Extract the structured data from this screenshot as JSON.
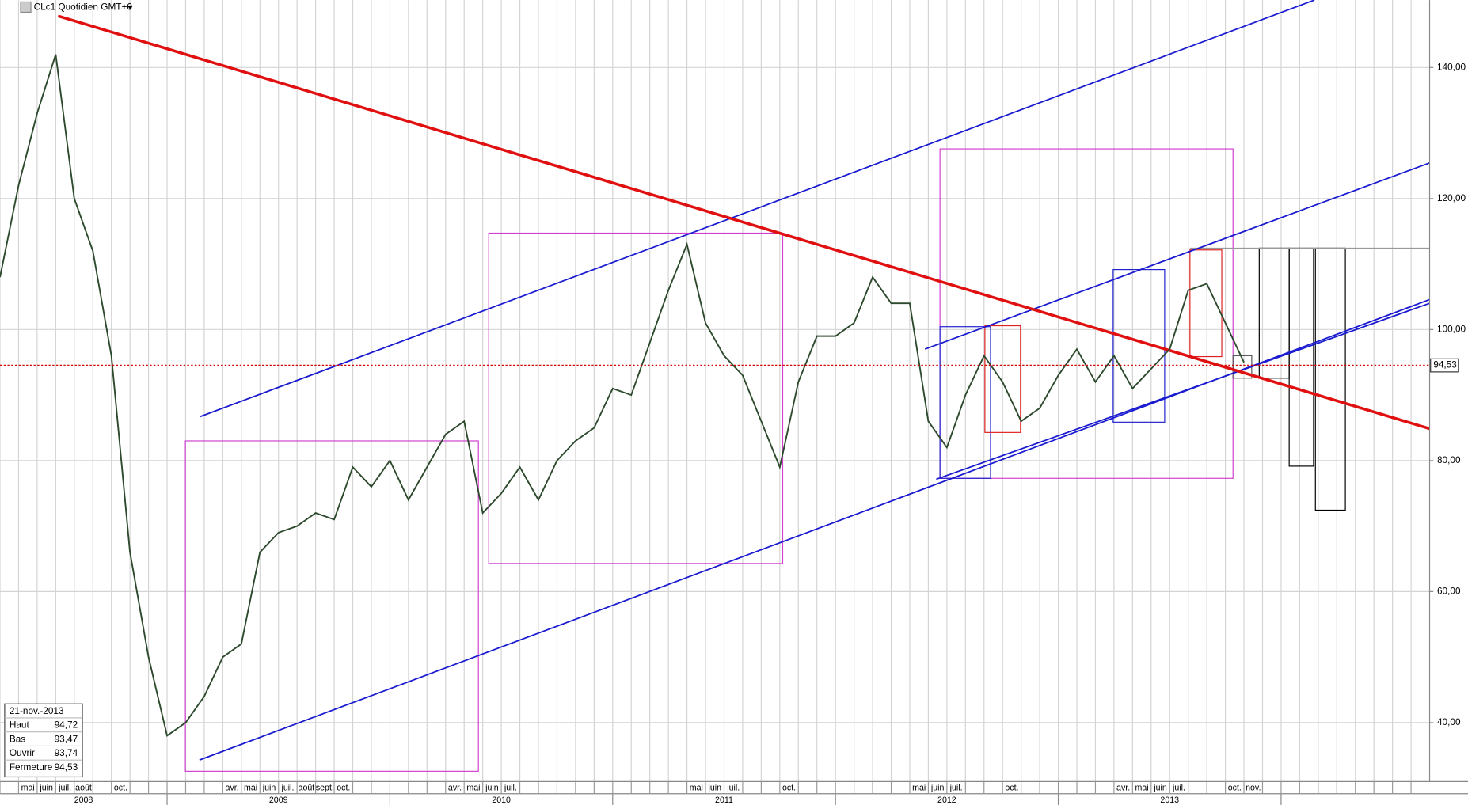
{
  "chart_data": {
    "type": "line",
    "title": "CLc1 Quotidien GMT+0",
    "xlim": [
      "2008-04",
      "2014-09"
    ],
    "ylim": [
      31,
      150.3
    ],
    "yticks": [
      {
        "value": 40,
        "label": "40,00"
      },
      {
        "value": 60,
        "label": "60,00"
      },
      {
        "value": 80,
        "label": "80,00"
      },
      {
        "value": 100,
        "label": "100,00"
      },
      {
        "value": 120,
        "label": "120,00"
      },
      {
        "value": 140,
        "label": "140,00"
      }
    ],
    "xticks": [
      {
        "value": "2008-04",
        "label": null
      },
      {
        "value": "2008-05",
        "label": "mai"
      },
      {
        "value": "2008-06",
        "label": "juin"
      },
      {
        "value": "2008-07",
        "label": "juil."
      },
      {
        "value": "2008-08",
        "label": "août"
      },
      {
        "value": "2008-09",
        "label": null
      },
      {
        "value": "2008-10",
        "label": "oct."
      },
      {
        "value": "2008-11",
        "label": null
      },
      {
        "value": "2008-12",
        "label": null
      },
      {
        "value": "2009-01",
        "label": null
      },
      {
        "value": "2009-02",
        "label": null
      },
      {
        "value": "2009-03",
        "label": null
      },
      {
        "value": "2009-04",
        "label": "avr."
      },
      {
        "value": "2009-05",
        "label": "mai"
      },
      {
        "value": "2009-06",
        "label": "juin"
      },
      {
        "value": "2009-07",
        "label": "juil."
      },
      {
        "value": "2009-08",
        "label": "août"
      },
      {
        "value": "2009-09",
        "label": "sept."
      },
      {
        "value": "2009-10",
        "label": "oct."
      },
      {
        "value": "2009-11",
        "label": null
      },
      {
        "value": "2009-12",
        "label": null
      },
      {
        "value": "2010-01",
        "label": null
      },
      {
        "value": "2010-02",
        "label": null
      },
      {
        "value": "2010-03",
        "label": null
      },
      {
        "value": "2010-04",
        "label": "avr."
      },
      {
        "value": "2010-05",
        "label": "mai"
      },
      {
        "value": "2010-06",
        "label": "juin"
      },
      {
        "value": "2010-07",
        "label": "juil."
      },
      {
        "value": "2010-08",
        "label": null
      },
      {
        "value": "2010-09",
        "label": null
      },
      {
        "value": "2010-10",
        "label": null
      },
      {
        "value": "2010-11",
        "label": null
      },
      {
        "value": "2010-12",
        "label": null
      },
      {
        "value": "2011-01",
        "label": null
      },
      {
        "value": "2011-02",
        "label": null
      },
      {
        "value": "2011-03",
        "label": null
      },
      {
        "value": "2011-04",
        "label": null
      },
      {
        "value": "2011-05",
        "label": "mai"
      },
      {
        "value": "2011-06",
        "label": "juin"
      },
      {
        "value": "2011-07",
        "label": "juil."
      },
      {
        "value": "2011-08",
        "label": null
      },
      {
        "value": "2011-09",
        "label": null
      },
      {
        "value": "2011-10",
        "label": "oct."
      },
      {
        "value": "2011-11",
        "label": null
      },
      {
        "value": "2011-12",
        "label": null
      },
      {
        "value": "2012-01",
        "label": null
      },
      {
        "value": "2012-02",
        "label": null
      },
      {
        "value": "2012-03",
        "label": null
      },
      {
        "value": "2012-04",
        "label": null
      },
      {
        "value": "2012-05",
        "label": "mai"
      },
      {
        "value": "2012-06",
        "label": "juin"
      },
      {
        "value": "2012-07",
        "label": "juil."
      },
      {
        "value": "2012-08",
        "label": null
      },
      {
        "value": "2012-09",
        "label": null
      },
      {
        "value": "2012-10",
        "label": "oct."
      },
      {
        "value": "2012-11",
        "label": null
      },
      {
        "value": "2012-12",
        "label": null
      },
      {
        "value": "2013-01",
        "label": null
      },
      {
        "value": "2013-02",
        "label": null
      },
      {
        "value": "2013-03",
        "label": null
      },
      {
        "value": "2013-04",
        "label": "avr."
      },
      {
        "value": "2013-05",
        "label": "mai"
      },
      {
        "value": "2013-06",
        "label": "juin"
      },
      {
        "value": "2013-07",
        "label": "juil."
      },
      {
        "value": "2013-08",
        "label": null
      },
      {
        "value": "2013-09",
        "label": null
      },
      {
        "value": "2013-10",
        "label": "oct."
      },
      {
        "value": "2013-11",
        "label": "nov."
      },
      {
        "value": "2013-12",
        "label": null
      },
      {
        "value": "2014-01",
        "label": null
      },
      {
        "value": "2014-02",
        "label": null
      },
      {
        "value": "2014-03",
        "label": null
      },
      {
        "value": "2014-04",
        "label": null
      },
      {
        "value": "2014-05",
        "label": null
      },
      {
        "value": "2014-06",
        "label": null
      },
      {
        "value": "2014-07",
        "label": null
      },
      {
        "value": "2014-08",
        "label": null
      }
    ],
    "years": [
      "2008",
      "2009",
      "2010",
      "2011",
      "2012",
      "2013"
    ],
    "x": [
      "2008-04",
      "2008-05",
      "2008-06",
      "2008-07",
      "2008-08",
      "2008-09",
      "2008-10",
      "2008-11",
      "2008-12",
      "2009-01",
      "2009-02",
      "2009-03",
      "2009-04",
      "2009-05",
      "2009-06",
      "2009-07",
      "2009-08",
      "2009-09",
      "2009-10",
      "2009-11",
      "2009-12",
      "2010-01",
      "2010-02",
      "2010-03",
      "2010-04",
      "2010-05",
      "2010-06",
      "2010-07",
      "2010-08",
      "2010-09",
      "2010-10",
      "2010-11",
      "2010-12",
      "2011-01",
      "2011-02",
      "2011-03",
      "2011-04",
      "2011-05",
      "2011-06",
      "2011-07",
      "2011-08",
      "2011-09",
      "2011-10",
      "2011-11",
      "2011-12",
      "2012-01",
      "2012-02",
      "2012-03",
      "2012-04",
      "2012-05",
      "2012-06",
      "2012-07",
      "2012-08",
      "2012-09",
      "2012-10",
      "2012-11",
      "2012-12",
      "2013-01",
      "2013-02",
      "2013-03",
      "2013-04",
      "2013-05",
      "2013-06",
      "2013-07",
      "2013-08",
      "2013-09",
      "2013-10",
      "2013-11"
    ],
    "series": [
      {
        "name": "CLc1",
        "color": "#2d4a2d",
        "values": [
          108,
          122,
          133,
          142,
          120,
          112,
          96,
          66,
          50,
          38,
          40,
          44,
          50,
          52,
          66,
          69,
          70,
          72,
          71,
          79,
          76,
          80,
          74,
          79,
          84,
          86,
          72,
          75,
          79,
          74,
          80,
          83,
          85,
          91,
          90,
          98,
          106,
          113,
          101,
          96,
          93,
          86,
          79,
          92,
          99,
          99,
          101,
          108,
          104,
          104,
          86,
          82,
          90,
          96,
          92,
          86,
          88,
          93,
          97,
          92,
          96,
          91,
          94,
          97,
          106,
          107,
          101,
          95
        ]
      }
    ],
    "last_price": {
      "value": 94.53,
      "label": "94,53"
    },
    "info": {
      "date": "21-nov.-2013",
      "rows": [
        [
          "Haut",
          "94,72"
        ],
        [
          "Bas",
          "93,47"
        ],
        [
          "Ouvrir",
          "93,74"
        ],
        [
          "Fermeture",
          "94,53"
        ]
      ]
    }
  }
}
